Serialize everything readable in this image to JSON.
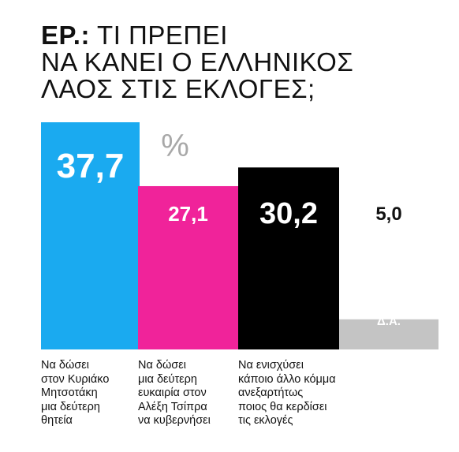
{
  "title_prefix": "ΕΡ.:",
  "title_lines": [
    "ΤΙ ΠΡΕΠΕΙ",
    "ΝΑ ΚΑΝΕΙ Ο ΕΛΛΗΝΙΚΟΣ",
    "ΛΑΟΣ ΣΤΙΣ ΕΚΛΟΓΕΣ;"
  ],
  "unit_label": "%",
  "chart_data": {
    "type": "bar",
    "title": "ΕΡ.: ΤΙ ΠΡΕΠΕΙ ΝΑ ΚΑΝΕΙ Ο ΕΛΛΗΝΙΚΟΣ ΛΑΟΣ ΣΤΙΣ ΕΚΛΟΓΕΣ;",
    "unit": "%",
    "categories": [
      "Να δώσει στον Κυριάκο Μητσοτάκη μια δεύτερη θητεία",
      "Να δώσει μια δεύτερη ευκαιρία στον Αλέξη Τσίπρα να κυβερνήσει",
      "Να ενισχύσει κάποιο άλλο κόμμα ανεξαρτήτως ποιος θα κερδίσει τις εκλογές",
      "Δ.Α."
    ],
    "values": [
      37.7,
      27.1,
      30.2,
      5.0
    ],
    "value_labels": [
      "37,7",
      "27,1",
      "30,2",
      "5,0"
    ],
    "colors": [
      "#1aaaf0",
      "#f0239a",
      "#000000",
      "#c4c4c4"
    ],
    "ylim": [
      0,
      37.7
    ]
  },
  "category_label_lines": [
    [
      "Να δώσει",
      "στον Κυριάκο",
      "Μητσοτάκη",
      "μια δεύτερη",
      "θητεία"
    ],
    [
      "Να δώσει",
      "μια δεύτερη",
      "ευκαιρία στον",
      "Αλέξη Τσίπρα",
      "να κυβερνήσει"
    ],
    [
      "Να ενισχύσει",
      "κάποιο άλλο κόμμα",
      "ανεξαρτήτως",
      "ποιος θα κερδίσει",
      "τις εκλογές"
    ]
  ]
}
